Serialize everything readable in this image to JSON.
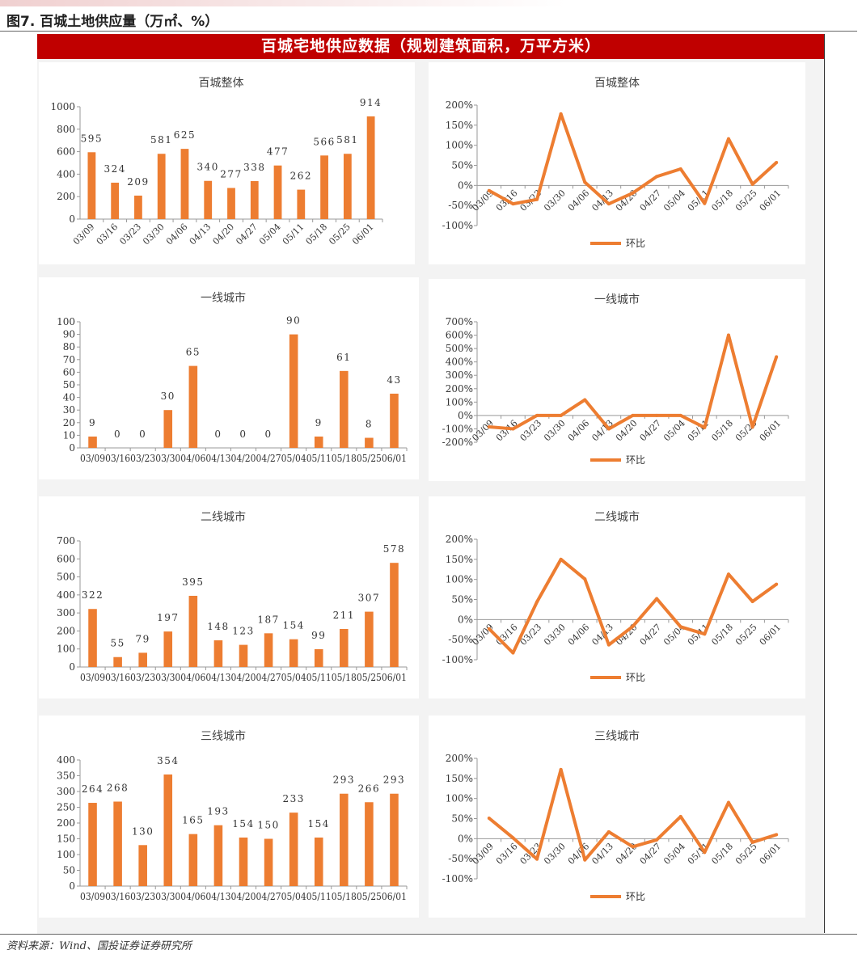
{
  "figure_title": "图7. 百城土地供应量（万㎡、%）",
  "banner": "百城宅地供应数据（规划建筑面积，万平方米）",
  "source": "资料来源：Wind、国投证券证券研究所",
  "colors": {
    "bar": "#ed7d31",
    "line": "#ed7d31",
    "banner": "#c00000"
  },
  "chart_data": [
    {
      "type": "bar",
      "title": "百城整体",
      "categories": [
        "03/09",
        "03/16",
        "03/23",
        "03/30",
        "04/06",
        "04/13",
        "04/20",
        "04/27",
        "05/04",
        "05/11",
        "05/18",
        "05/25",
        "06/01"
      ],
      "values": [
        595,
        324,
        209,
        581,
        625,
        340,
        277,
        338,
        477,
        262,
        566,
        581,
        914
      ],
      "ylim": [
        0,
        1000
      ],
      "yticks": [
        "0",
        "200",
        "400",
        "600",
        "800",
        "1000"
      ],
      "tick_style": "rotated",
      "grid": false
    },
    {
      "type": "line",
      "title": "百城整体",
      "categories": [
        "03/09",
        "03/16",
        "03/23",
        "03/30",
        "04/06",
        "04/13",
        "04/20",
        "04/27",
        "05/04",
        "05/11",
        "05/18",
        "05/25",
        "06/01"
      ],
      "series": [
        {
          "name": "环比",
          "values": [
            -13,
            -46,
            -35,
            178,
            8,
            -46,
            -19,
            22,
            41,
            -45,
            116,
            3,
            57
          ]
        }
      ],
      "ylim": [
        -100,
        200
      ],
      "yticks": [
        "-100%",
        "-50%",
        "0%",
        "50%",
        "100%",
        "150%",
        "200%"
      ],
      "legend_position": "bottom",
      "grid": false
    },
    {
      "type": "bar",
      "title": "一线城市",
      "categories": [
        "03/09",
        "03/16",
        "03/23",
        "03/30",
        "04/06",
        "04/13",
        "04/20",
        "04/27",
        "05/04",
        "05/11",
        "05/18",
        "05/25",
        "06/01"
      ],
      "values": [
        9,
        0,
        0,
        30,
        65,
        0,
        0,
        0,
        90,
        9,
        61,
        8,
        43
      ],
      "ylim": [
        0,
        100
      ],
      "yticks": [
        "0",
        "10",
        "20",
        "30",
        "40",
        "50",
        "60",
        "70",
        "80",
        "90",
        "100"
      ],
      "tick_style": "flat",
      "grid": false
    },
    {
      "type": "line",
      "title": "一线城市",
      "categories": [
        "03/09",
        "03/16",
        "03/23",
        "03/30",
        "04/06",
        "04/13",
        "04/20",
        "04/27",
        "05/04",
        "05/11",
        "05/18",
        "05/25",
        "06/01"
      ],
      "series": [
        {
          "name": "环比",
          "values": [
            -85,
            -100,
            0,
            0,
            117,
            -100,
            0,
            0,
            0,
            -90,
            600,
            -87,
            438
          ]
        }
      ],
      "ylim": [
        -200,
        700
      ],
      "yticks": [
        "-200%",
        "-100%",
        "0%",
        "100%",
        "200%",
        "300%",
        "400%",
        "500%",
        "600%",
        "700%"
      ],
      "legend_position": "bottom",
      "grid": false
    },
    {
      "type": "bar",
      "title": "二线城市",
      "categories": [
        "03/09",
        "03/16",
        "03/23",
        "03/30",
        "04/06",
        "04/13",
        "04/20",
        "04/27",
        "05/04",
        "05/11",
        "05/18",
        "05/25",
        "06/01"
      ],
      "values": [
        322,
        55,
        79,
        197,
        395,
        148,
        123,
        187,
        154,
        99,
        211,
        307,
        578
      ],
      "ylim": [
        0,
        700
      ],
      "yticks": [
        "0",
        "100",
        "200",
        "300",
        "400",
        "500",
        "600",
        "700"
      ],
      "tick_style": "flat",
      "grid": false
    },
    {
      "type": "line",
      "title": "二线城市",
      "categories": [
        "03/09",
        "03/16",
        "03/23",
        "03/30",
        "04/06",
        "04/13",
        "04/20",
        "04/27",
        "05/04",
        "05/11",
        "05/18",
        "05/25",
        "06/01"
      ],
      "series": [
        {
          "name": "环比",
          "values": [
            -23,
            -83,
            44,
            150,
            101,
            -63,
            -17,
            52,
            -18,
            -36,
            113,
            45,
            88
          ]
        }
      ],
      "ylim": [
        -100,
        200
      ],
      "yticks": [
        "-100%",
        "-50%",
        "0%",
        "50%",
        "100%",
        "150%",
        "200%"
      ],
      "legend_position": "bottom",
      "grid": false
    },
    {
      "type": "bar",
      "title": "三线城市",
      "categories": [
        "03/09",
        "03/16",
        "03/23",
        "03/30",
        "04/06",
        "04/13",
        "04/20",
        "04/27",
        "05/04",
        "05/11",
        "05/18",
        "05/25",
        "06/01"
      ],
      "values": [
        264,
        268,
        130,
        354,
        165,
        193,
        154,
        150,
        233,
        154,
        293,
        266,
        293
      ],
      "ylim": [
        0,
        400
      ],
      "yticks": [
        "0",
        "50",
        "100",
        "150",
        "200",
        "250",
        "300",
        "350",
        "400"
      ],
      "tick_style": "flat",
      "grid": false
    },
    {
      "type": "line",
      "title": "三线城市",
      "categories": [
        "03/09",
        "03/16",
        "03/23",
        "03/30",
        "04/06",
        "04/13",
        "04/20",
        "04/27",
        "05/04",
        "05/11",
        "05/18",
        "05/25",
        "06/01"
      ],
      "series": [
        {
          "name": "环比",
          "values": [
            51,
            2,
            -51,
            172,
            -53,
            17,
            -20,
            -3,
            55,
            -34,
            90,
            -9,
            10
          ]
        }
      ],
      "ylim": [
        -100,
        200
      ],
      "yticks": [
        "-100%",
        "-50%",
        "0%",
        "50%",
        "100%",
        "150%",
        "200%"
      ],
      "legend_position": "bottom",
      "grid": false
    }
  ]
}
